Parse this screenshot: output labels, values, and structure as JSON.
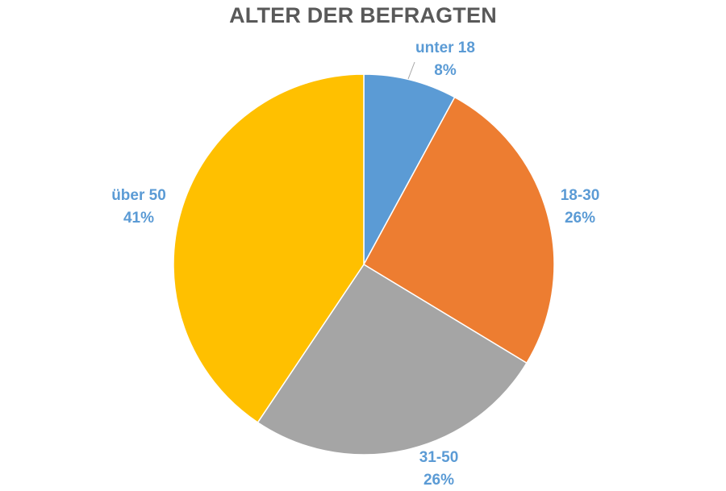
{
  "chart_data": {
    "type": "pie",
    "title": "ALTER DER BEFRAGTEN",
    "categories": [
      "unter 18",
      "18-30",
      "31-50",
      "über 50"
    ],
    "values": [
      8,
      26,
      26,
      41
    ],
    "value_labels": [
      "8%",
      "26%",
      "26%",
      "41%"
    ],
    "colors": [
      "#5B9BD5",
      "#ED7D31",
      "#A5A5A5",
      "#FFC000"
    ],
    "label_color": "#5B9BD5",
    "start_angle_deg": 0,
    "direction": "clockwise",
    "legend": "none",
    "data_labels": "outside"
  }
}
